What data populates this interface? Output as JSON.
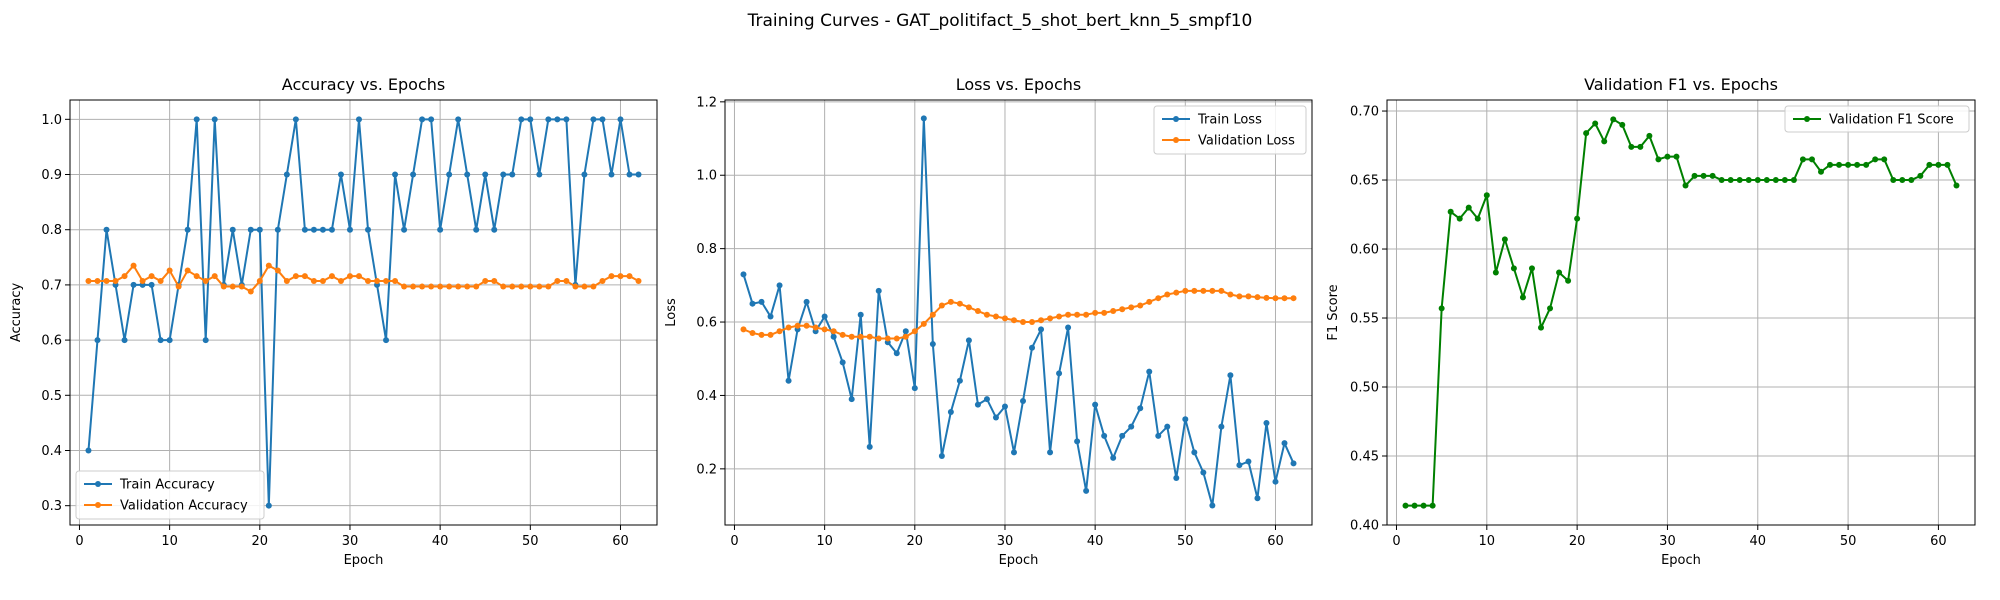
{
  "figure": {
    "title": "Training Curves - GAT_politifact_5_shot_bert_knn_5_smpf10"
  },
  "chart_data": [
    {
      "type": "line",
      "title": "Accuracy vs. Epochs",
      "xlabel": "Epoch",
      "ylabel": "Accuracy",
      "xlim": [
        -1.05,
        64.05
      ],
      "ylim": [
        0.265,
        1.035
      ],
      "xticks": [
        0,
        10,
        20,
        30,
        40,
        50,
        60
      ],
      "yticks": [
        0.3,
        0.4,
        0.5,
        0.6,
        0.7,
        0.8,
        0.9,
        1.0
      ],
      "grid": true,
      "legend": "lower-left",
      "x": [
        1,
        2,
        3,
        4,
        5,
        6,
        7,
        8,
        9,
        10,
        11,
        12,
        13,
        14,
        15,
        16,
        17,
        18,
        19,
        20,
        21,
        22,
        23,
        24,
        25,
        26,
        27,
        28,
        29,
        30,
        31,
        32,
        33,
        34,
        35,
        36,
        37,
        38,
        39,
        40,
        41,
        42,
        43,
        44,
        45,
        46,
        47,
        48,
        49,
        50,
        51,
        52,
        53,
        54,
        55,
        56,
        57,
        58,
        59,
        60,
        61,
        62
      ],
      "series": [
        {
          "name": "Train Accuracy",
          "color": "#1f77b4",
          "values": [
            0.4,
            0.6,
            0.8,
            0.7,
            0.6,
            0.7,
            0.7,
            0.7,
            0.6,
            0.6,
            0.7,
            0.8,
            1.0,
            0.6,
            1.0,
            0.7,
            0.8,
            0.7,
            0.8,
            0.8,
            0.3,
            0.8,
            0.9,
            1.0,
            0.8,
            0.8,
            0.8,
            0.8,
            0.9,
            0.8,
            1.0,
            0.8,
            0.7,
            0.6,
            0.9,
            0.8,
            0.9,
            1.0,
            1.0,
            0.8,
            0.9,
            1.0,
            0.9,
            0.8,
            0.9,
            0.8,
            0.9,
            0.9,
            1.0,
            1.0,
            0.9,
            1.0,
            1.0,
            1.0,
            0.7,
            0.9,
            1.0,
            1.0,
            0.9,
            1.0,
            0.9,
            0.9
          ]
        },
        {
          "name": "Validation Accuracy",
          "color": "#ff7f0e",
          "values": [
            0.707,
            0.707,
            0.707,
            0.707,
            0.716,
            0.735,
            0.707,
            0.716,
            0.707,
            0.726,
            0.697,
            0.726,
            0.716,
            0.707,
            0.716,
            0.697,
            0.697,
            0.697,
            0.688,
            0.707,
            0.735,
            0.726,
            0.707,
            0.716,
            0.716,
            0.707,
            0.707,
            0.716,
            0.707,
            0.716,
            0.716,
            0.707,
            0.707,
            0.707,
            0.707,
            0.697,
            0.697,
            0.697,
            0.697,
            0.697,
            0.697,
            0.697,
            0.697,
            0.697,
            0.707,
            0.707,
            0.697,
            0.697,
            0.697,
            0.697,
            0.697,
            0.697,
            0.707,
            0.707,
            0.697,
            0.697,
            0.697,
            0.707,
            0.716,
            0.716,
            0.716,
            0.707
          ]
        }
      ]
    },
    {
      "type": "line",
      "title": "Loss vs. Epochs",
      "xlabel": "Epoch",
      "ylabel": "Loss",
      "xlim": [
        -1.05,
        64.05
      ],
      "ylim": [
        0.047,
        1.205
      ],
      "xticks": [
        0,
        10,
        20,
        30,
        40,
        50,
        60
      ],
      "yticks": [
        0.2,
        0.4,
        0.6,
        0.8,
        1.0,
        1.2
      ],
      "grid": true,
      "legend": "upper-right",
      "x": [
        1,
        2,
        3,
        4,
        5,
        6,
        7,
        8,
        9,
        10,
        11,
        12,
        13,
        14,
        15,
        16,
        17,
        18,
        19,
        20,
        21,
        22,
        23,
        24,
        25,
        26,
        27,
        28,
        29,
        30,
        31,
        32,
        33,
        34,
        35,
        36,
        37,
        38,
        39,
        40,
        41,
        42,
        43,
        44,
        45,
        46,
        47,
        48,
        49,
        50,
        51,
        52,
        53,
        54,
        55,
        56,
        57,
        58,
        59,
        60,
        61,
        62
      ],
      "series": [
        {
          "name": "Train Loss",
          "color": "#1f77b4",
          "values": [
            0.73,
            0.65,
            0.655,
            0.615,
            0.7,
            0.44,
            0.58,
            0.655,
            0.575,
            0.615,
            0.56,
            0.49,
            0.39,
            0.62,
            0.26,
            0.685,
            0.545,
            0.515,
            0.575,
            0.42,
            1.155,
            0.54,
            0.235,
            0.355,
            0.44,
            0.55,
            0.375,
            0.39,
            0.34,
            0.37,
            0.245,
            0.385,
            0.53,
            0.58,
            0.245,
            0.46,
            0.585,
            0.275,
            0.14,
            0.375,
            0.29,
            0.23,
            0.29,
            0.315,
            0.365,
            0.465,
            0.29,
            0.315,
            0.175,
            0.335,
            0.245,
            0.19,
            0.1,
            0.315,
            0.455,
            0.21,
            0.22,
            0.12,
            0.325,
            0.165,
            0.27,
            0.215
          ]
        },
        {
          "name": "Validation Loss",
          "color": "#ff7f0e",
          "values": [
            0.58,
            0.57,
            0.565,
            0.565,
            0.575,
            0.585,
            0.59,
            0.59,
            0.585,
            0.58,
            0.575,
            0.565,
            0.56,
            0.56,
            0.56,
            0.555,
            0.555,
            0.555,
            0.56,
            0.575,
            0.595,
            0.62,
            0.645,
            0.655,
            0.65,
            0.64,
            0.63,
            0.62,
            0.615,
            0.61,
            0.605,
            0.6,
            0.6,
            0.605,
            0.61,
            0.615,
            0.62,
            0.62,
            0.62,
            0.625,
            0.625,
            0.63,
            0.635,
            0.64,
            0.645,
            0.655,
            0.665,
            0.675,
            0.68,
            0.685,
            0.685,
            0.685,
            0.685,
            0.685,
            0.675,
            0.67,
            0.67,
            0.668,
            0.666,
            0.665,
            0.665,
            0.665
          ]
        }
      ]
    },
    {
      "type": "line",
      "title": "Validation F1 vs. Epochs",
      "xlabel": "Epoch",
      "ylabel": "F1 Score",
      "xlim": [
        -1.05,
        64.05
      ],
      "ylim": [
        0.4,
        0.708
      ],
      "xticks": [
        0,
        10,
        20,
        30,
        40,
        50,
        60
      ],
      "yticks": [
        0.4,
        0.45,
        0.5,
        0.55,
        0.6,
        0.65,
        0.7
      ],
      "grid": true,
      "legend": "upper-right",
      "x": [
        1,
        2,
        3,
        4,
        5,
        6,
        7,
        8,
        9,
        10,
        11,
        12,
        13,
        14,
        15,
        16,
        17,
        18,
        19,
        20,
        21,
        22,
        23,
        24,
        25,
        26,
        27,
        28,
        29,
        30,
        31,
        32,
        33,
        34,
        35,
        36,
        37,
        38,
        39,
        40,
        41,
        42,
        43,
        44,
        45,
        46,
        47,
        48,
        49,
        50,
        51,
        52,
        53,
        54,
        55,
        56,
        57,
        58,
        59,
        60,
        61,
        62
      ],
      "series": [
        {
          "name": "Validation F1 Score",
          "color": "#008000",
          "values": [
            0.414,
            0.414,
            0.414,
            0.414,
            0.557,
            0.627,
            0.622,
            0.63,
            0.622,
            0.639,
            0.583,
            0.607,
            0.586,
            0.565,
            0.586,
            0.543,
            0.557,
            0.583,
            0.577,
            0.622,
            0.684,
            0.691,
            0.678,
            0.694,
            0.69,
            0.674,
            0.674,
            0.682,
            0.665,
            0.667,
            0.667,
            0.646,
            0.653,
            0.653,
            0.653,
            0.65,
            0.65,
            0.65,
            0.65,
            0.65,
            0.65,
            0.65,
            0.65,
            0.65,
            0.665,
            0.665,
            0.656,
            0.661,
            0.661,
            0.661,
            0.661,
            0.661,
            0.665,
            0.665,
            0.65,
            0.65,
            0.65,
            0.653,
            0.661,
            0.661,
            0.661,
            0.646
          ]
        }
      ]
    }
  ]
}
